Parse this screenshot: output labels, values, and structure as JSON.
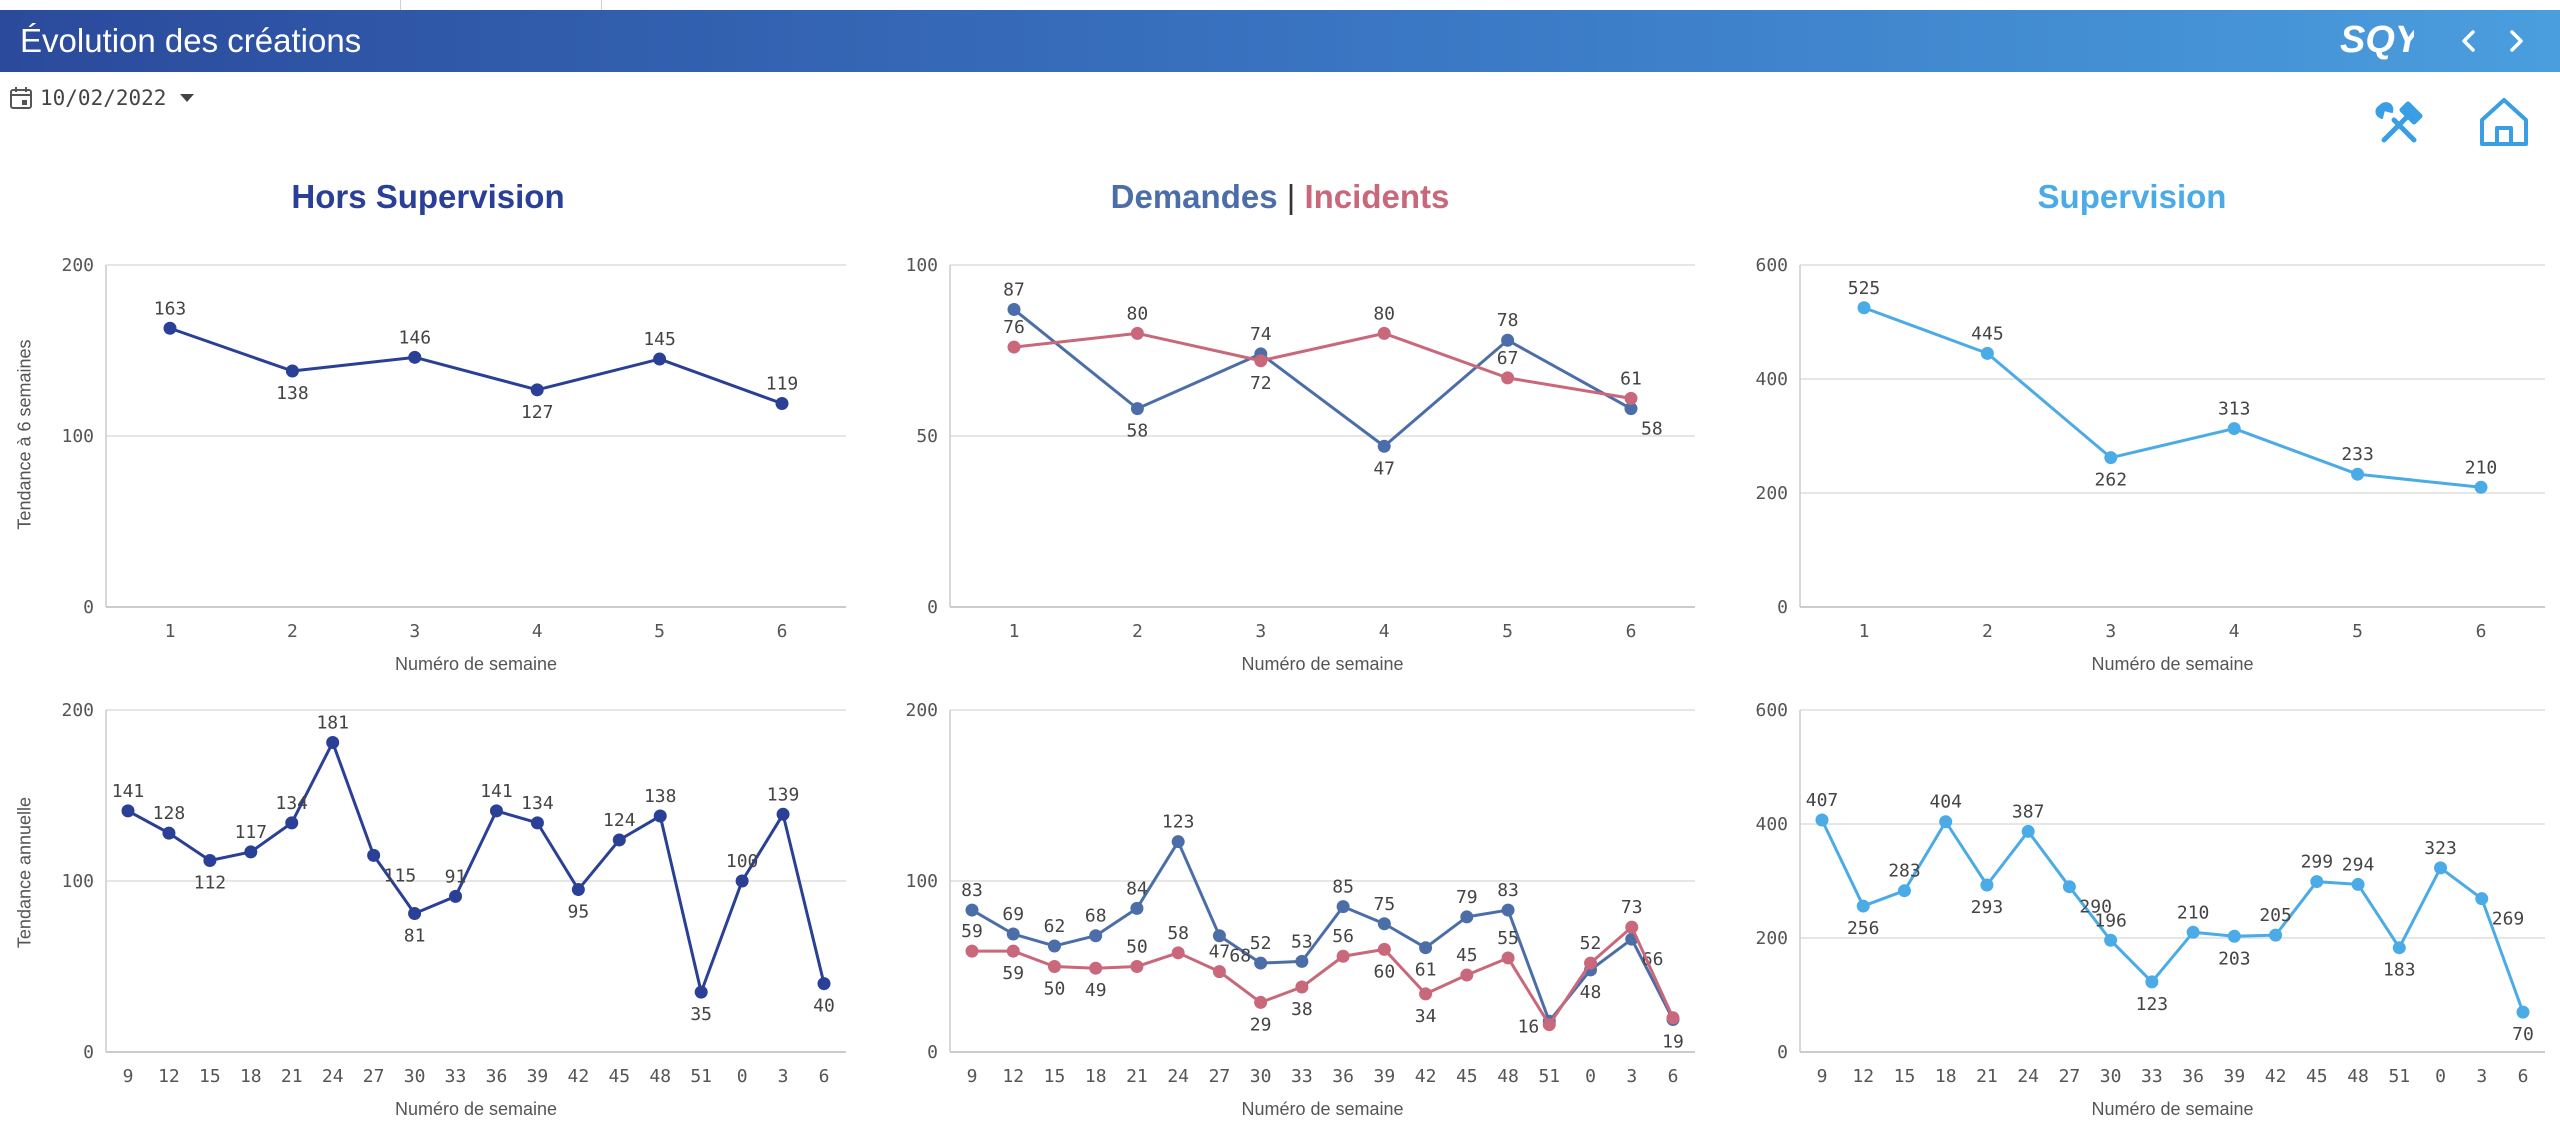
{
  "header": {
    "title": "Évolution des créations",
    "logo_text": "SQY",
    "gradient_colors": [
      "#2b4a9c",
      "#4a9ede"
    ]
  },
  "filter": {
    "date": "10/02/2022"
  },
  "sections": {
    "hors_supervision": "Hors Supervision",
    "demandes": "Demandes",
    "separator": "|",
    "incidents": "Incidents",
    "supervision": "Supervision"
  },
  "colors": {
    "dark_blue": "#2a3f96",
    "slate_blue": "#4c6ea8",
    "rose": "#c8687a",
    "light_blue": "#4aabe6"
  },
  "row_labels": {
    "top": "Tendance à 6 semaines",
    "bottom": "Tendance annuelle"
  },
  "chart_data": [
    {
      "type": "line",
      "xlabel": "Numéro de semaine",
      "ylabel": "Tendance à 6 semaines",
      "categories": [
        "1",
        "2",
        "3",
        "4",
        "5",
        "6"
      ],
      "ylim": [
        0,
        200
      ],
      "yticks": [
        0,
        100,
        200
      ],
      "series": [
        {
          "color": "#2a3f96",
          "values": [
            163,
            138,
            146,
            127,
            145,
            119
          ],
          "labels": [
            "above",
            "below",
            "above",
            "below",
            "above",
            "above"
          ]
        }
      ]
    },
    {
      "type": "line",
      "xlabel": "Numéro de semaine",
      "ylabel": "",
      "categories": [
        "1",
        "2",
        "3",
        "4",
        "5",
        "6"
      ],
      "ylim": [
        0,
        100
      ],
      "yticks": [
        0,
        50,
        100
      ],
      "series": [
        {
          "name": "Demandes",
          "color": "#4c6ea8",
          "values": [
            87,
            58,
            74,
            47,
            78,
            58
          ],
          "labels": [
            "above",
            "below",
            "above",
            "below",
            "above",
            "right"
          ]
        },
        {
          "name": "Incidents",
          "color": "#c8687a",
          "values": [
            76,
            80,
            72,
            80,
            67,
            61
          ],
          "labels": [
            "above",
            "above",
            "below",
            "above",
            "above",
            "above"
          ]
        }
      ]
    },
    {
      "type": "line",
      "xlabel": "Numéro de semaine",
      "ylabel": "",
      "categories": [
        "1",
        "2",
        "3",
        "4",
        "5",
        "6"
      ],
      "ylim": [
        0,
        600
      ],
      "yticks": [
        0,
        200,
        400,
        600
      ],
      "series": [
        {
          "color": "#4aabe6",
          "values": [
            525,
            445,
            262,
            313,
            233,
            210
          ],
          "labels": [
            "above",
            "above",
            "below",
            "above",
            "above",
            "above"
          ]
        }
      ]
    },
    {
      "type": "line",
      "xlabel": "Numéro de semaine",
      "ylabel": "Tendance annuelle",
      "categories": [
        "9",
        "12",
        "15",
        "18",
        "21",
        "24",
        "27",
        "30",
        "33",
        "36",
        "39",
        "42",
        "45",
        "48",
        "51",
        "0",
        "3",
        "6"
      ],
      "ylim": [
        0,
        200
      ],
      "yticks": [
        0,
        100,
        200
      ],
      "series": [
        {
          "color": "#2a3f96",
          "values": [
            141,
            128,
            112,
            117,
            134,
            181,
            115,
            81,
            91,
            141,
            134,
            95,
            124,
            138,
            35,
            100,
            139,
            40
          ],
          "labels": [
            "above",
            "above",
            "below",
            "above",
            "above",
            "above",
            "right",
            "below",
            "above",
            "above",
            "above",
            "below",
            "above",
            "above",
            "below",
            "above",
            "above",
            "below"
          ]
        }
      ]
    },
    {
      "type": "line",
      "xlabel": "Numéro de semaine",
      "ylabel": "",
      "categories": [
        "9",
        "12",
        "15",
        "18",
        "21",
        "24",
        "27",
        "30",
        "33",
        "36",
        "39",
        "42",
        "45",
        "48",
        "51",
        "0",
        "3",
        "6"
      ],
      "ylim": [
        0,
        200
      ],
      "yticks": [
        0,
        100,
        200
      ],
      "series": [
        {
          "name": "Demandes",
          "color": "#4c6ea8",
          "values": [
            83,
            69,
            62,
            68,
            84,
            123,
            68,
            52,
            53,
            85,
            75,
            61,
            79,
            83,
            18,
            48,
            66,
            19
          ],
          "labels": [
            "above",
            "above",
            "above",
            "above",
            "above",
            "above",
            "right",
            "above",
            "above",
            "above",
            "above",
            "below",
            "above",
            "above",
            "none",
            "below",
            "right",
            "below"
          ]
        },
        {
          "name": "Incidents",
          "color": "#c8687a",
          "values": [
            59,
            59,
            50,
            49,
            50,
            58,
            47,
            29,
            38,
            56,
            60,
            34,
            45,
            55,
            16,
            52,
            73,
            20
          ],
          "labels": [
            "above",
            "below",
            "below",
            "below",
            "above",
            "above",
            "above",
            "below",
            "below",
            "above",
            "below",
            "below",
            "above",
            "above",
            "left",
            "above",
            "above",
            "none"
          ]
        }
      ]
    },
    {
      "type": "line",
      "xlabel": "Numéro de semaine",
      "ylabel": "",
      "categories": [
        "9",
        "12",
        "15",
        "18",
        "21",
        "24",
        "27",
        "30",
        "33",
        "36",
        "39",
        "42",
        "45",
        "48",
        "51",
        "0",
        "3",
        "6"
      ],
      "ylim": [
        0,
        600
      ],
      "yticks": [
        0,
        200,
        400,
        600
      ],
      "series": [
        {
          "color": "#4aabe6",
          "values": [
            407,
            256,
            283,
            404,
            293,
            387,
            290,
            196,
            123,
            210,
            203,
            205,
            299,
            294,
            183,
            323,
            269,
            70
          ],
          "labels": [
            "above",
            "below",
            "above",
            "above",
            "below",
            "above",
            "right",
            "above",
            "below",
            "above",
            "below",
            "above",
            "above",
            "above",
            "below",
            "above",
            "right",
            "below"
          ]
        }
      ]
    }
  ]
}
